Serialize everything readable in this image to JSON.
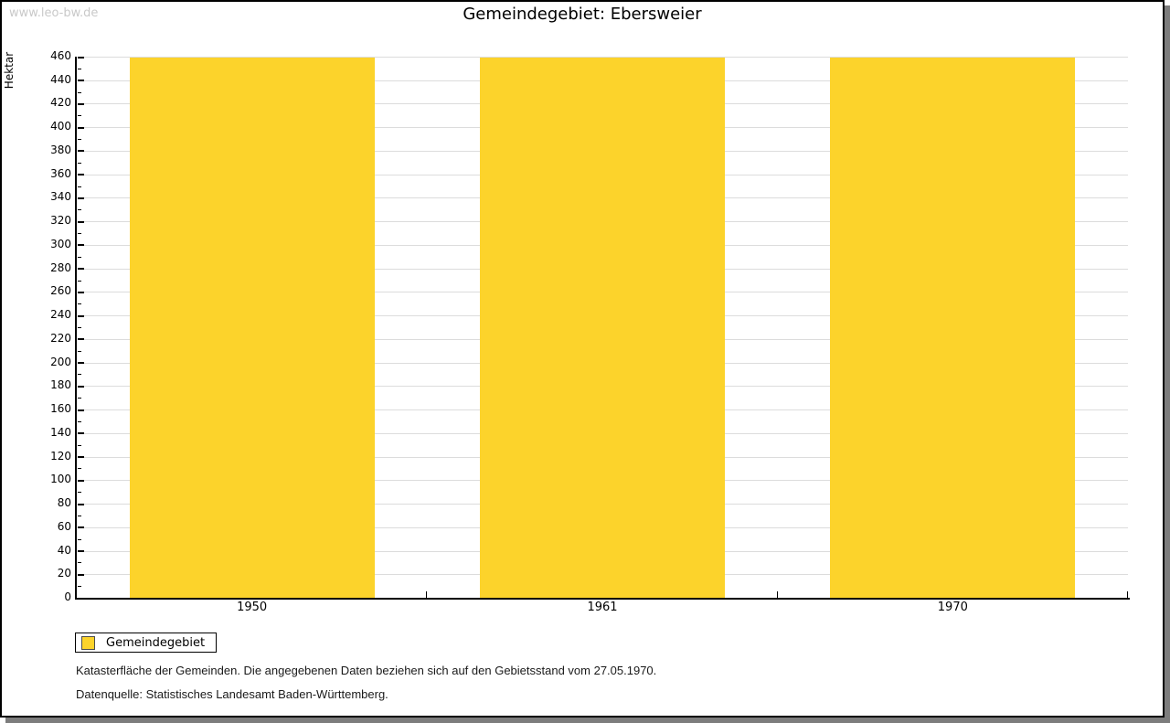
{
  "watermark": "www.leo-bw.de",
  "title": "Gemeindegebiet: Ebersweier",
  "y_axis_label": "Hektar",
  "legend": {
    "label": "Gemeindegebiet"
  },
  "footer": {
    "line1": "Katasterfläche der Gemeinden. Die angegebenen Daten beziehen sich auf den Gebietsstand vom 27.05.1970.",
    "line2": "Datenquelle: Statistisches Landesamt Baden-Württemberg."
  },
  "colors": {
    "bar": "#FCD32B",
    "grid": "#DCDCDC",
    "axis": "#000000",
    "watermark": "#C9C9C9",
    "frame_shadow": "#7D7D7D"
  },
  "chart_data": {
    "type": "bar",
    "title": "Gemeindegebiet: Ebersweier",
    "categories": [
      "1950",
      "1961",
      "1970"
    ],
    "series": [
      {
        "name": "Gemeindegebiet",
        "values": [
          459,
          459,
          459
        ]
      }
    ],
    "xlabel": "",
    "ylabel": "Hektar",
    "ylim": [
      0,
      460
    ],
    "y_major_step": 20,
    "y_minor_step": 10,
    "grid": "horizontal-major",
    "legend_position": "bottom-left",
    "bar_color": "#FCD32B"
  }
}
